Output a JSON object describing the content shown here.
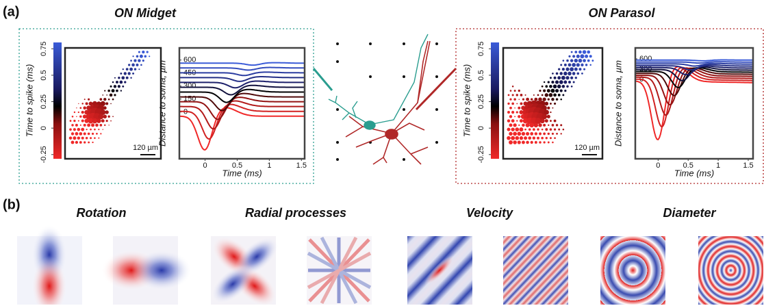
{
  "panel_a": {
    "label": "(a)",
    "cells": [
      {
        "title": "ON Midget",
        "colorbar": {
          "label": "Time to spike (ms)",
          "lim": [
            -0.29,
            0.81
          ],
          "ticks": [
            0.75,
            0.5,
            0.25,
            0,
            -0.25
          ]
        },
        "scale_bar": "120 µm",
        "traces": {
          "xlabel": "Time (ms)",
          "ylabel": "Distance to soma, µm",
          "xlim": [
            -0.4,
            1.55
          ],
          "xticks": [
            0,
            0.5,
            1,
            1.5
          ],
          "ylim": [
            -540,
            740
          ],
          "yticks": [
            0,
            150,
            300,
            450,
            600
          ]
        }
      },
      {
        "title": "ON Parasol",
        "colorbar": {
          "label": "Time to spike (ms)",
          "lim": [
            -0.29,
            0.81
          ],
          "ticks": [
            0.75,
            0.5,
            0.25,
            0,
            -0.25
          ]
        },
        "scale_bar": "120 µm",
        "traces": {
          "xlabel": "Time (ms)",
          "ylabel": "Distance to soma, µm",
          "xlim": [
            -0.38,
            1.58
          ],
          "xticks": [
            0,
            0.5,
            1,
            1.5
          ],
          "ylim": [
            -2320,
            920
          ],
          "yticks": [
            0,
            300,
            600
          ]
        }
      }
    ]
  },
  "panel_b": {
    "label": "(b)",
    "groups": [
      "Rotation",
      "Radial processes",
      "Velocity",
      "Diameter"
    ]
  }
}
